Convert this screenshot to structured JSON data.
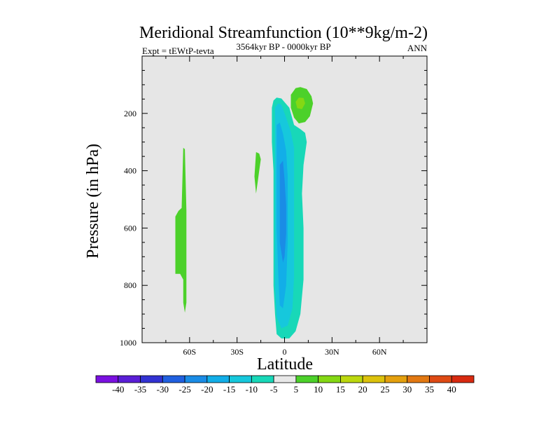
{
  "chart_data": {
    "type": "contour",
    "title": "Meridional Streamfunction (10**9kg/m-2)",
    "subtitle_left": "Expt = tEWtP-tevta",
    "subtitle_center": "3564kyr BP - 0000kyr BP",
    "subtitle_right": "ANN",
    "xlabel": "Latitude",
    "ylabel": "Pressure (in hPa)",
    "xlim": [
      -90,
      90
    ],
    "ylim": [
      0,
      1000
    ],
    "y_inverted": true,
    "x_ticks": [
      {
        "value": -60,
        "label": "60S"
      },
      {
        "value": -30,
        "label": "30S"
      },
      {
        "value": 0,
        "label": "0"
      },
      {
        "value": 30,
        "label": "30N"
      },
      {
        "value": 60,
        "label": "60N"
      }
    ],
    "y_ticks": [
      {
        "value": 200,
        "label": "200"
      },
      {
        "value": 400,
        "label": "400"
      },
      {
        "value": 600,
        "label": "600"
      },
      {
        "value": 800,
        "label": "800"
      },
      {
        "value": 1000,
        "label": "1000"
      }
    ],
    "background_fill": "#e6e6e6",
    "colorbar": {
      "levels": [
        "-40",
        "-35",
        "-30",
        "-25",
        "-20",
        "-15",
        "-10",
        "-5",
        "5",
        "10",
        "15",
        "20",
        "25",
        "30",
        "35",
        "40"
      ],
      "colors": [
        "#7a10e0",
        "#5a1ed6",
        "#3232d2",
        "#2060e0",
        "#1a8ce6",
        "#12aee8",
        "#16c8dc",
        "#18d8b8",
        "#e8e8e8",
        "#4cd12a",
        "#84d814",
        "#bcd80e",
        "#dcc20c",
        "#e4a00e",
        "#e27812",
        "#de4a14",
        "#d82a10"
      ]
    },
    "regions": [
      {
        "name": "deep-cell-tropics-outer",
        "value_range": [
          -10,
          -5
        ],
        "color": "#18d8b8",
        "points": [
          [
            -8,
            180
          ],
          [
            -7,
            155
          ],
          [
            -5,
            145
          ],
          [
            -2,
            148
          ],
          [
            3,
            180
          ],
          [
            6,
            240
          ],
          [
            10,
            255
          ],
          [
            13,
            268
          ],
          [
            14,
            300
          ],
          [
            12,
            380
          ],
          [
            11,
            480
          ],
          [
            12,
            600
          ],
          [
            12,
            780
          ],
          [
            10,
            900
          ],
          [
            7,
            960
          ],
          [
            3,
            985
          ],
          [
            -2,
            985
          ],
          [
            -5,
            970
          ],
          [
            -6,
            900
          ],
          [
            -7,
            800
          ],
          [
            -7,
            600
          ],
          [
            -7,
            400
          ],
          [
            -8,
            300
          ]
        ]
      },
      {
        "name": "deep-cell-tropics-mid",
        "value_range": [
          -15,
          -10
        ],
        "color": "#16c8dc",
        "points": [
          [
            -6,
            180
          ],
          [
            -4,
            165
          ],
          [
            -2,
            170
          ],
          [
            1,
            215
          ],
          [
            4,
            265
          ],
          [
            6,
            320
          ],
          [
            6,
            450
          ],
          [
            6,
            600
          ],
          [
            6,
            770
          ],
          [
            5,
            880
          ],
          [
            2,
            940
          ],
          [
            -2,
            950
          ],
          [
            -5,
            910
          ],
          [
            -6,
            800
          ],
          [
            -6,
            600
          ],
          [
            -6,
            400
          ],
          [
            -6,
            300
          ]
        ]
      },
      {
        "name": "deep-cell-tropics-inner",
        "value_range": [
          -20,
          -15
        ],
        "color": "#12aee8",
        "points": [
          [
            -5,
            240
          ],
          [
            -3,
            232
          ],
          [
            -1,
            270
          ],
          [
            1,
            330
          ],
          [
            2,
            420
          ],
          [
            2,
            520
          ],
          [
            2,
            650
          ],
          [
            1,
            800
          ],
          [
            -1,
            880
          ],
          [
            -3,
            870
          ],
          [
            -4,
            760
          ],
          [
            -5,
            600
          ],
          [
            -5,
            450
          ],
          [
            -5,
            330
          ]
        ]
      },
      {
        "name": "deep-cell-tropics-core",
        "value_range": [
          -25,
          -20
        ],
        "color": "#1a8ce6",
        "points": [
          [
            -3,
            380
          ],
          [
            -1,
            365
          ],
          [
            0,
            430
          ],
          [
            1,
            520
          ],
          [
            1,
            620
          ],
          [
            0,
            700
          ],
          [
            -1,
            720
          ],
          [
            -3,
            650
          ],
          [
            -3,
            520
          ],
          [
            -3,
            430
          ]
        ]
      },
      {
        "name": "upper-north-cell-outer",
        "value_range": [
          5,
          10
        ],
        "color": "#4cd12a",
        "points": [
          [
            4,
            135
          ],
          [
            7,
            112
          ],
          [
            10,
            108
          ],
          [
            14,
            115
          ],
          [
            17,
            140
          ],
          [
            18,
            165
          ],
          [
            16,
            210
          ],
          [
            13,
            230
          ],
          [
            9,
            235
          ],
          [
            6,
            215
          ],
          [
            4,
            180
          ]
        ]
      },
      {
        "name": "upper-north-cell-core",
        "value_range": [
          10,
          15
        ],
        "color": "#84d814",
        "points": [
          [
            7,
            160
          ],
          [
            9,
            145
          ],
          [
            12,
            146
          ],
          [
            13,
            165
          ],
          [
            11,
            185
          ],
          [
            8,
            182
          ]
        ]
      },
      {
        "name": "southern-midlat-cell",
        "value_range": [
          5,
          10
        ],
        "color": "#4cd12a",
        "points": [
          [
            -64,
            320
          ],
          [
            -63,
            325
          ],
          [
            -62,
            540
          ],
          [
            -62,
            720
          ],
          [
            -62,
            860
          ],
          [
            -63,
            895
          ],
          [
            -64,
            860
          ],
          [
            -64,
            780
          ],
          [
            -66,
            760
          ],
          [
            -69,
            760
          ],
          [
            -69,
            560
          ],
          [
            -67,
            540
          ],
          [
            -65,
            530
          ]
        ]
      },
      {
        "name": "subtropical-south-sliver",
        "value_range": [
          5,
          10
        ],
        "color": "#4cd12a",
        "points": [
          [
            -18,
            335
          ],
          [
            -16,
            340
          ],
          [
            -15,
            360
          ],
          [
            -16,
            400
          ],
          [
            -17,
            440
          ],
          [
            -18,
            480
          ],
          [
            -19,
            420
          ]
        ]
      }
    ]
  }
}
